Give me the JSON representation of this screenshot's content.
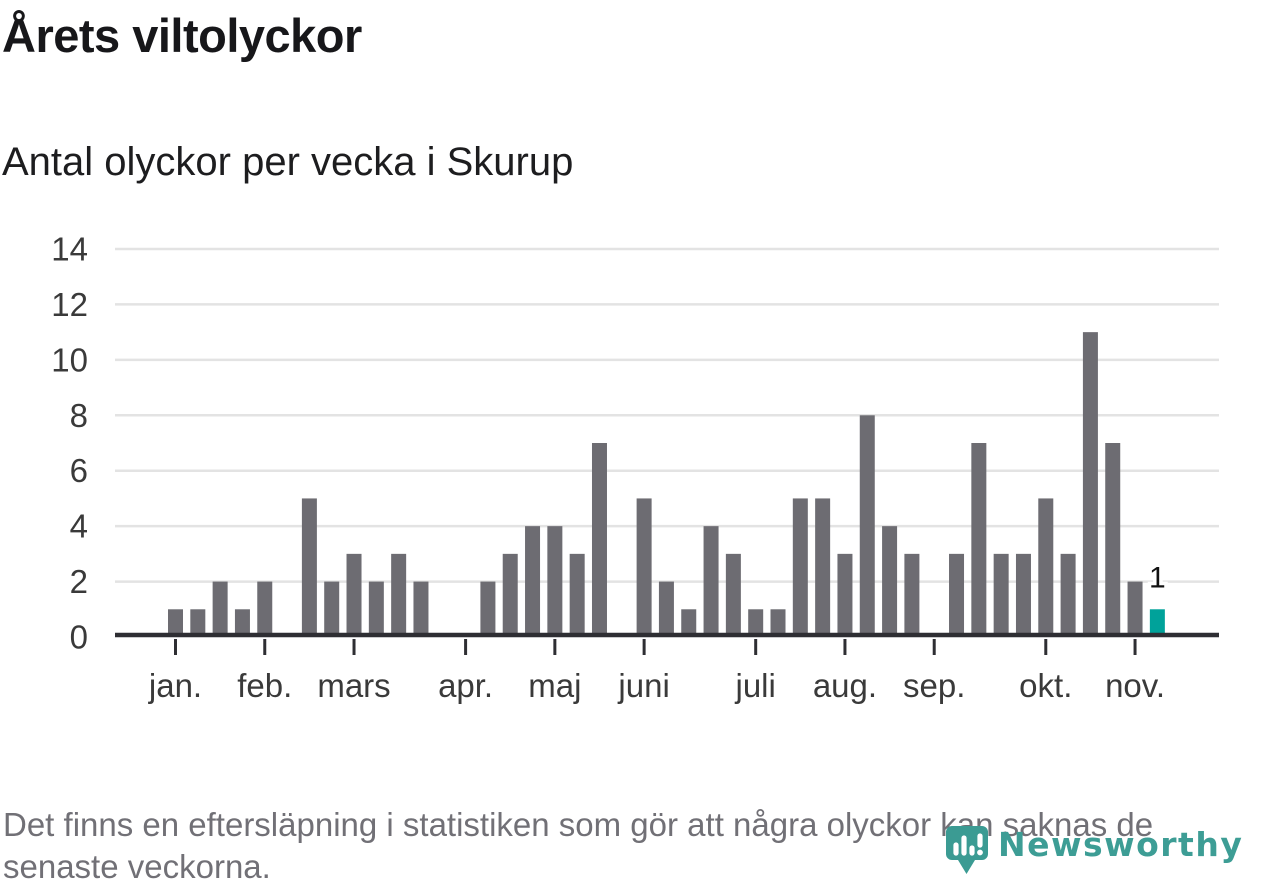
{
  "header": {
    "title": "Årets viltolyckor",
    "subtitle": "Antal olyckor per vecka i Skurup"
  },
  "chart_data": {
    "type": "bar",
    "title": "Årets viltolyckor",
    "subtitle": "Antal olyckor per vecka i Skurup",
    "x_unit": "vecka (week of year, jan.–nov.)",
    "ylabel": "Antal olyckor",
    "ylim": [
      0,
      14
    ],
    "y_ticks": [
      0,
      2,
      4,
      6,
      8,
      10,
      12,
      14
    ],
    "grid": "horizontal",
    "legend_position": "none",
    "values": [
      1,
      1,
      2,
      1,
      2,
      0,
      5,
      2,
      3,
      2,
      3,
      2,
      0,
      0,
      2,
      3,
      4,
      4,
      3,
      7,
      0,
      5,
      2,
      1,
      4,
      3,
      1,
      1,
      5,
      5,
      3,
      8,
      4,
      3,
      0,
      3,
      7,
      3,
      3,
      5,
      3,
      11,
      7,
      2,
      1
    ],
    "months": [
      {
        "label": "jan.",
        "week": 0
      },
      {
        "label": "feb.",
        "week": 4
      },
      {
        "label": "mars",
        "week": 8
      },
      {
        "label": "apr.",
        "week": 13
      },
      {
        "label": "maj",
        "week": 17
      },
      {
        "label": "juni",
        "week": 21
      },
      {
        "label": "juli",
        "week": 26
      },
      {
        "label": "aug.",
        "week": 30
      },
      {
        "label": "sep.",
        "week": 34
      },
      {
        "label": "okt.",
        "week": 39
      },
      {
        "label": "nov.",
        "week": 43
      }
    ],
    "highlight": {
      "index": 44,
      "value_label": "1",
      "color": "#00a29a"
    },
    "colors": {
      "bar": "#6d6c72",
      "highlight": "#00a29a",
      "grid": "#e3e3e3",
      "axis": "#2e2e33",
      "tick_label": "#3a3a3a",
      "value_label": "#111111"
    }
  },
  "footnote": {
    "line1": "Det finns en eftersläpning i statistiken som gör att några olyckor kan saknas de",
    "line2": "senaste veckorna."
  },
  "logo": {
    "wordmark": "Newsworthy",
    "color": "#3d9d95",
    "icon": "newsworthy-pin-barchart-icon"
  }
}
